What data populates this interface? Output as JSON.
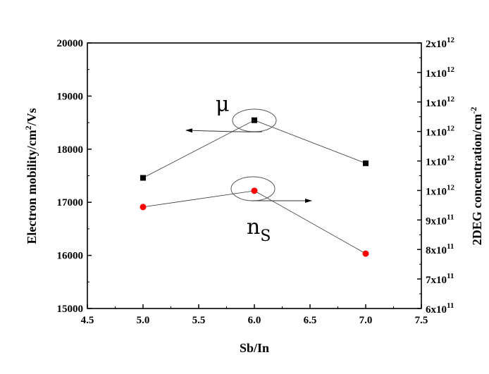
{
  "chart_data": {
    "type": "line",
    "title": "",
    "xlabel": "Sb/In",
    "ylabel": "Electron mobility/cm²/Vs",
    "ylabel_parts": {
      "base": "Electron mobility/cm",
      "sup": "2",
      "rest": "/Vs"
    },
    "y2label": "2DEG concentration/cm^-2",
    "y2label_parts": {
      "base": "2DEG concentration/cm",
      "sup": "-2"
    },
    "xlim": [
      4.5,
      7.5
    ],
    "ylim": [
      15000,
      20000
    ],
    "y2lim": [
      600000000000.0,
      1500000000000.0
    ],
    "x_ticks": [
      "4.5",
      "5.0",
      "5.5",
      "6.0",
      "6.5",
      "7.0",
      "7.5"
    ],
    "y_ticks": [
      "15000",
      "16000",
      "17000",
      "18000",
      "19000",
      "20000"
    ],
    "y2_ticks": [
      {
        "mant": "6x10",
        "exp": "11"
      },
      {
        "mant": "7x10",
        "exp": "11"
      },
      {
        "mant": "8x10",
        "exp": "11"
      },
      {
        "mant": "9x10",
        "exp": "11"
      },
      {
        "mant": "1x10",
        "exp": "12"
      },
      {
        "mant": "1x10",
        "exp": "12"
      },
      {
        "mant": "1x10",
        "exp": "12"
      },
      {
        "mant": "1x10",
        "exp": "12"
      },
      {
        "mant": "1x10",
        "exp": "12"
      },
      {
        "mant": "2x10",
        "exp": "12"
      }
    ],
    "grid": false,
    "series": [
      {
        "name": "μ",
        "axis": "left",
        "marker": "square",
        "color": "#000000",
        "x": [
          5.0,
          6.0,
          7.0
        ],
        "y": [
          17460,
          18545,
          17735
        ]
      },
      {
        "name": "n_s",
        "axis": "right",
        "marker": "circle",
        "color": "#ff0000",
        "x": [
          5.0,
          6.0,
          7.0
        ],
        "y": [
          944000000000.0,
          999000000000.0,
          786000000000.0
        ]
      }
    ],
    "annotations": {
      "mu": "μ",
      "ns_base": "n",
      "ns_sub": "S"
    }
  }
}
